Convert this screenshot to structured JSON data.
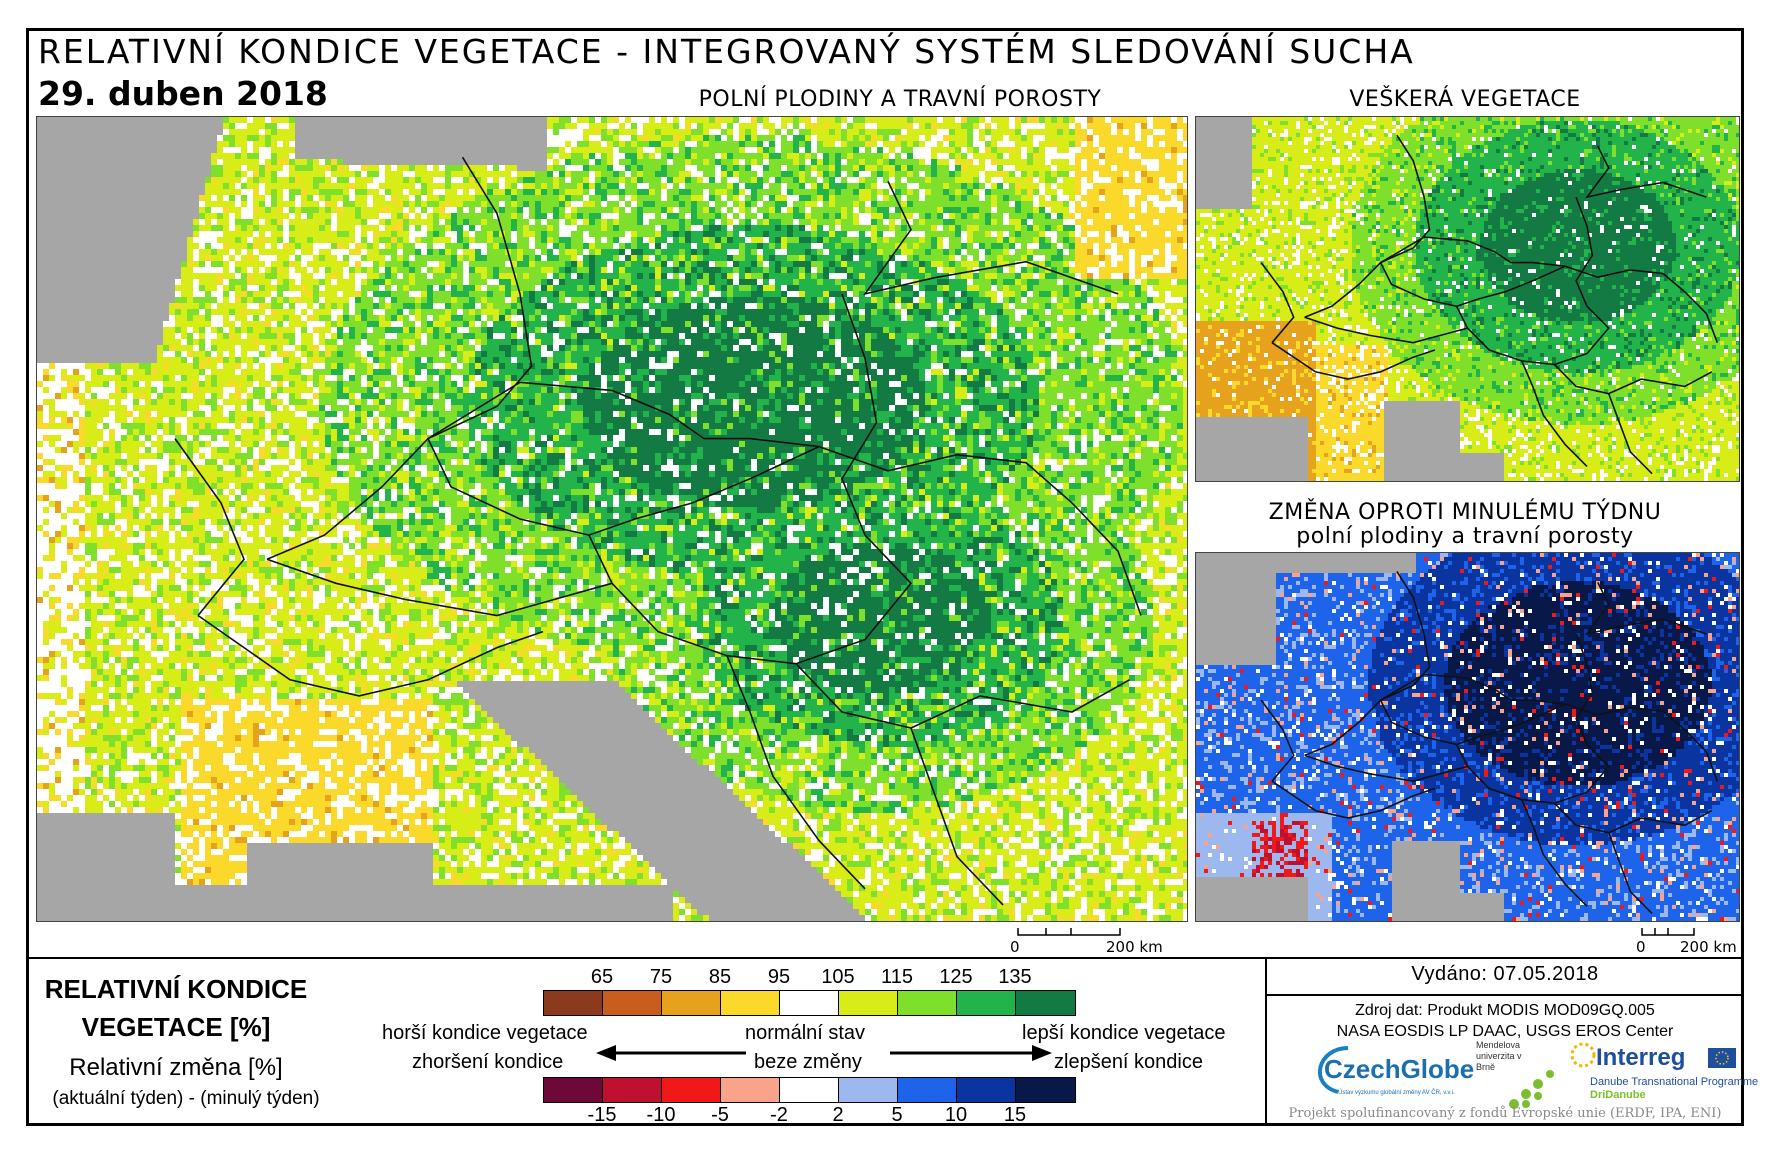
{
  "header": {
    "title": "RELATIVNÍ KONDICE VEGETACE - INTEGROVANÝ SYSTÉM SLEDOVÁNÍ SUCHA",
    "date": "29. duben 2018"
  },
  "maps": {
    "main": {
      "caption": "POLNÍ PLODINY A TRAVNÍ POROSTY",
      "scale_zero": "0",
      "scale_label": "200 km"
    },
    "all_vegetation": {
      "caption": "VEŠKERÁ VEGETACE"
    },
    "weekly_change": {
      "caption_line1": "ZMĚNA OPROTI MINULÉMU TÝDNU",
      "caption_line2": "polní plodiny a travní porosty",
      "scale_zero": "0",
      "scale_label": "200 km"
    }
  },
  "legend": {
    "title": "RELATIVNÍ KONDICE VEGETACE [%]",
    "subtitle": "Relativní změna [%]",
    "subtitle2": "(aktuální týden) - (minulý týden)",
    "condition_ticks": [
      "65",
      "75",
      "85",
      "95",
      "105",
      "115",
      "125",
      "135"
    ],
    "condition_colors": [
      "#8b3a1e",
      "#c95d1e",
      "#e6a21c",
      "#fbd92b",
      "#ffffff",
      "#d8ec18",
      "#7ee02a",
      "#22b44a",
      "#147a44"
    ],
    "change_ticks": [
      "-15",
      "-10",
      "-5",
      "-2",
      "2",
      "5",
      "10",
      "15"
    ],
    "change_colors": [
      "#6e0838",
      "#c01030",
      "#f01818",
      "#f9a38a",
      "#ffffff",
      "#9cb8ee",
      "#1e64ea",
      "#0a34a0",
      "#081848"
    ],
    "worse_condition": "horší kondice vegetace",
    "worse_change": "zhoršení kondice",
    "normal": "normální stav",
    "no_change": "beze změny",
    "better_condition": "lepší kondice vegetace",
    "better_change": "zlepšení kondice"
  },
  "info": {
    "issued": "Vydáno: 07.05.2018",
    "source_line1": "Zdroj dat: Produkt MODIS MOD09GQ.005",
    "source_line2": "NASA EOSDIS LP DAAC, USGS EROS Center",
    "funded": "Projekt spolufinancovaný z fondů Evropské unie (ERDF, IPA, ENI)"
  },
  "logos": {
    "czechglobe": "CzechGlobe",
    "czechglobe_sub": "Ústav výzkumu globální změny AV ČR, v.v.i.",
    "mendelu": "Mendelova univerzita v Brně",
    "interreg": "Interreg",
    "interreg_sub1": "Danube Transnational Programme",
    "interreg_sub2": "DriDanube"
  }
}
